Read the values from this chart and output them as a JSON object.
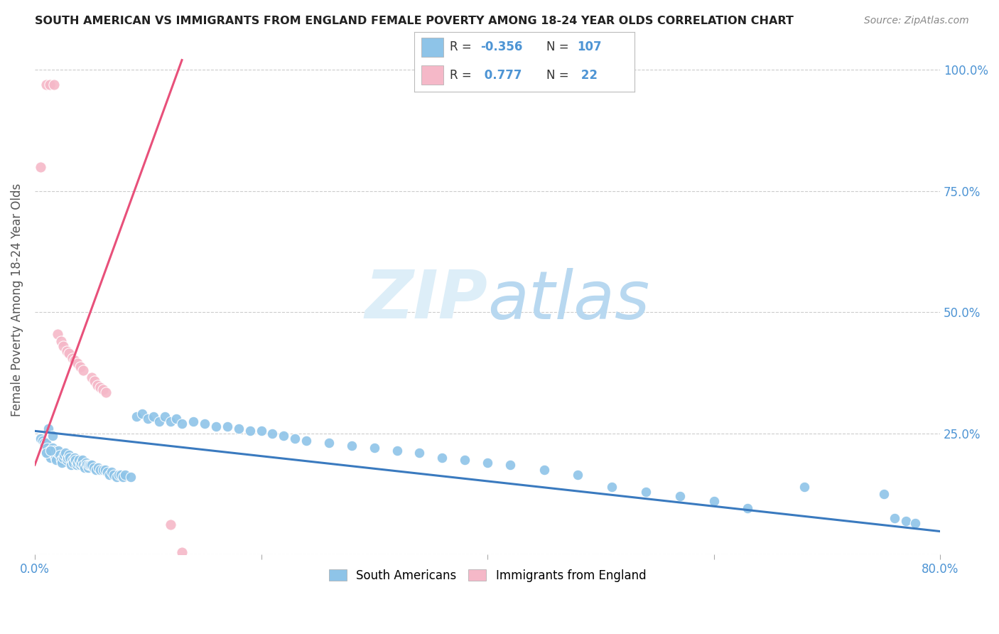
{
  "title": "SOUTH AMERICAN VS IMMIGRANTS FROM ENGLAND FEMALE POVERTY AMONG 18-24 YEAR OLDS CORRELATION CHART",
  "source": "Source: ZipAtlas.com",
  "ylabel": "Female Poverty Among 18-24 Year Olds",
  "xlim": [
    0.0,
    0.8
  ],
  "ylim": [
    0.0,
    1.05
  ],
  "right_yticks": [
    0.0,
    0.25,
    0.5,
    0.75,
    1.0
  ],
  "right_yticklabels": [
    "",
    "25.0%",
    "50.0%",
    "75.0%",
    "100.0%"
  ],
  "xticklabels": [
    "0.0%",
    "",
    "",
    "",
    "80.0%"
  ],
  "xticks": [
    0.0,
    0.2,
    0.4,
    0.6,
    0.8
  ],
  "blue_color": "#8ec4e8",
  "pink_color": "#f5b8c8",
  "blue_line_color": "#3a7abf",
  "pink_line_color": "#e8507a",
  "label_color": "#4d94d4",
  "watermark_color": "#ddeef8",
  "blue_trend_x": [
    0.0,
    0.8
  ],
  "blue_trend_y": [
    0.255,
    0.048
  ],
  "pink_trend_x": [
    0.0,
    0.13
  ],
  "pink_trend_y": [
    0.185,
    1.02
  ],
  "blue_scatter_x": [
    0.005,
    0.007,
    0.008,
    0.009,
    0.01,
    0.01,
    0.011,
    0.012,
    0.013,
    0.014,
    0.015,
    0.016,
    0.017,
    0.018,
    0.019,
    0.02,
    0.021,
    0.022,
    0.023,
    0.024,
    0.025,
    0.026,
    0.027,
    0.028,
    0.029,
    0.03,
    0.031,
    0.032,
    0.033,
    0.034,
    0.035,
    0.036,
    0.037,
    0.038,
    0.039,
    0.04,
    0.041,
    0.042,
    0.043,
    0.044,
    0.045,
    0.046,
    0.047,
    0.048,
    0.049,
    0.05,
    0.052,
    0.054,
    0.056,
    0.058,
    0.06,
    0.062,
    0.064,
    0.066,
    0.068,
    0.07,
    0.072,
    0.074,
    0.076,
    0.078,
    0.08,
    0.085,
    0.09,
    0.095,
    0.1,
    0.105,
    0.11,
    0.115,
    0.12,
    0.125,
    0.13,
    0.14,
    0.15,
    0.16,
    0.17,
    0.18,
    0.19,
    0.2,
    0.21,
    0.22,
    0.23,
    0.24,
    0.26,
    0.28,
    0.3,
    0.32,
    0.34,
    0.36,
    0.38,
    0.4,
    0.42,
    0.45,
    0.48,
    0.51,
    0.54,
    0.57,
    0.6,
    0.63,
    0.68,
    0.75,
    0.76,
    0.77,
    0.778,
    0.01,
    0.012,
    0.014,
    0.016
  ],
  "blue_scatter_y": [
    0.24,
    0.235,
    0.23,
    0.225,
    0.23,
    0.215,
    0.22,
    0.205,
    0.215,
    0.2,
    0.21,
    0.22,
    0.215,
    0.2,
    0.195,
    0.21,
    0.215,
    0.205,
    0.195,
    0.19,
    0.2,
    0.205,
    0.21,
    0.195,
    0.2,
    0.205,
    0.2,
    0.185,
    0.195,
    0.19,
    0.2,
    0.195,
    0.185,
    0.19,
    0.195,
    0.185,
    0.19,
    0.195,
    0.185,
    0.18,
    0.19,
    0.185,
    0.18,
    0.185,
    0.185,
    0.185,
    0.18,
    0.175,
    0.18,
    0.175,
    0.175,
    0.175,
    0.17,
    0.165,
    0.17,
    0.165,
    0.16,
    0.165,
    0.165,
    0.16,
    0.165,
    0.16,
    0.285,
    0.29,
    0.28,
    0.285,
    0.275,
    0.285,
    0.275,
    0.28,
    0.27,
    0.275,
    0.27,
    0.265,
    0.265,
    0.26,
    0.255,
    0.255,
    0.25,
    0.245,
    0.24,
    0.235,
    0.23,
    0.225,
    0.22,
    0.215,
    0.21,
    0.2,
    0.195,
    0.19,
    0.185,
    0.175,
    0.165,
    0.14,
    0.13,
    0.12,
    0.11,
    0.095,
    0.14,
    0.125,
    0.075,
    0.07,
    0.065,
    0.21,
    0.26,
    0.215,
    0.245
  ],
  "pink_scatter_x": [
    0.005,
    0.01,
    0.013,
    0.017,
    0.02,
    0.023,
    0.025,
    0.028,
    0.03,
    0.033,
    0.035,
    0.038,
    0.04,
    0.043,
    0.05,
    0.053,
    0.055,
    0.058,
    0.06,
    0.063,
    0.12,
    0.13
  ],
  "pink_scatter_y": [
    0.8,
    0.97,
    0.97,
    0.97,
    0.455,
    0.44,
    0.43,
    0.42,
    0.415,
    0.405,
    0.4,
    0.395,
    0.388,
    0.38,
    0.365,
    0.358,
    0.35,
    0.345,
    0.34,
    0.335,
    0.062,
    0.005
  ]
}
